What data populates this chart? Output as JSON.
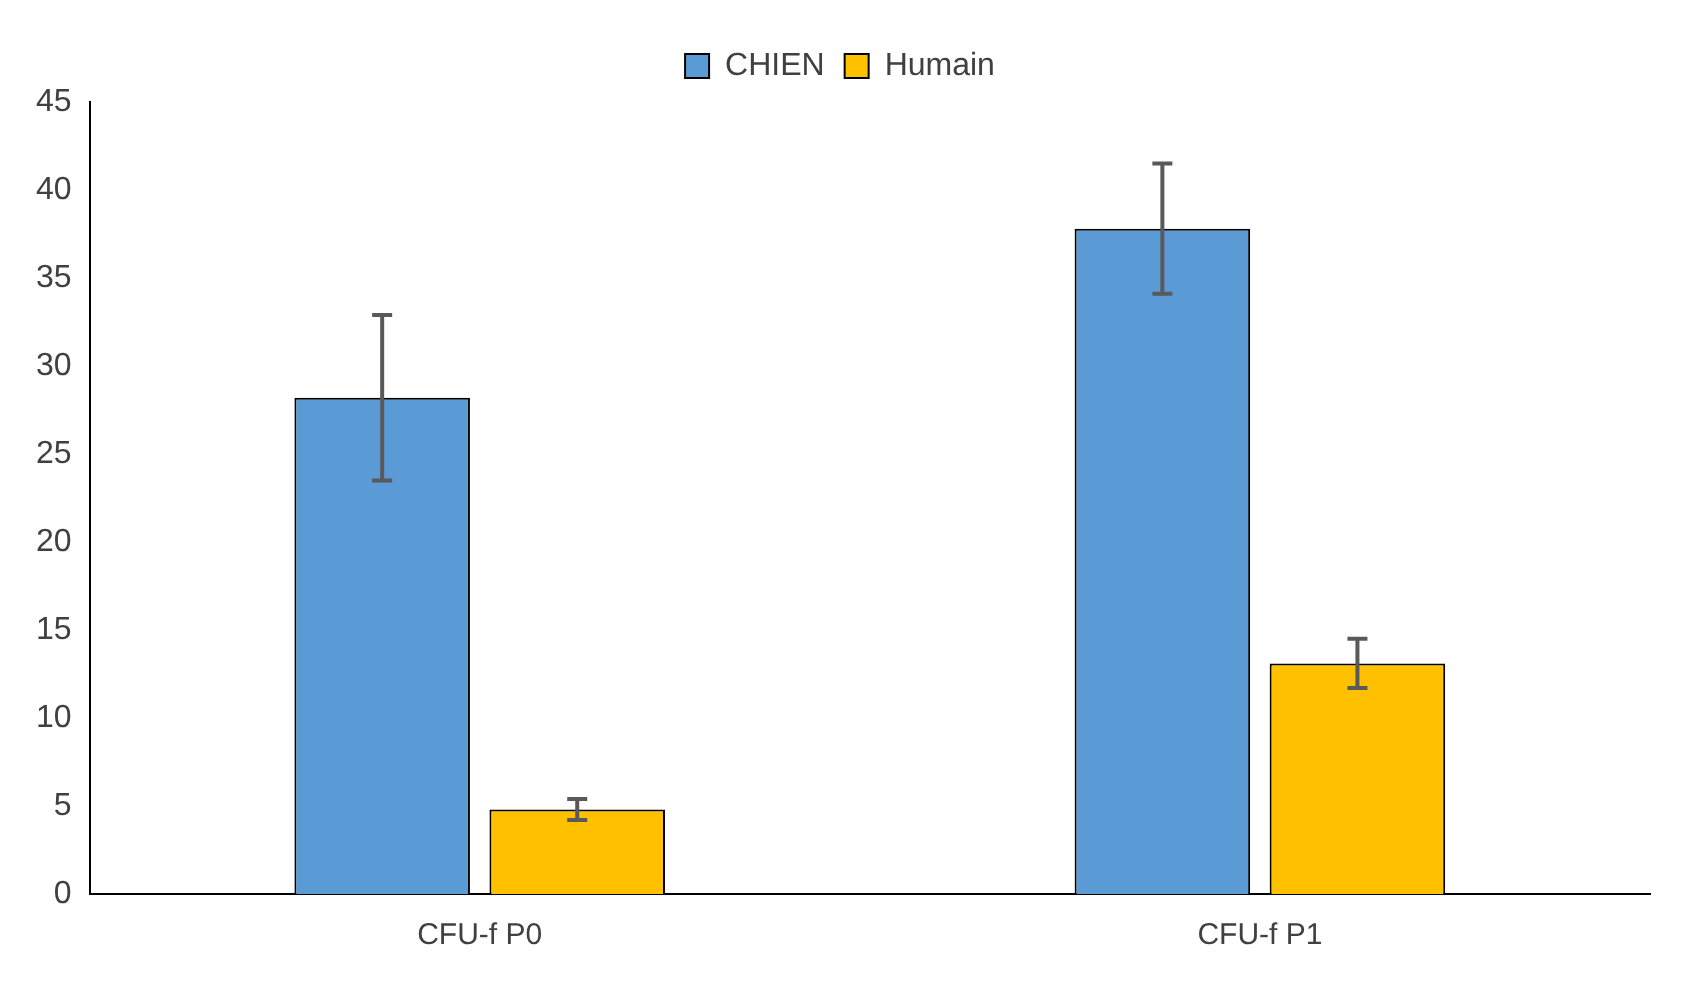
{
  "chart_data": {
    "type": "bar",
    "categories": [
      "CFU-f P0",
      "CFU-f P1"
    ],
    "series": [
      {
        "name": "CHIEN",
        "color": "#5b9bd5",
        "values": [
          28.2,
          37.8
        ],
        "errors": [
          4.7,
          3.7
        ]
      },
      {
        "name": "Humain",
        "color": "#ffc000",
        "values": [
          4.8,
          13.1
        ],
        "errors": [
          0.6,
          1.4
        ]
      }
    ],
    "ylim": [
      0,
      45
    ],
    "yticks": [
      0,
      5,
      10,
      15,
      20,
      25,
      30,
      35,
      40,
      45
    ],
    "grid": false,
    "legend": "top"
  }
}
